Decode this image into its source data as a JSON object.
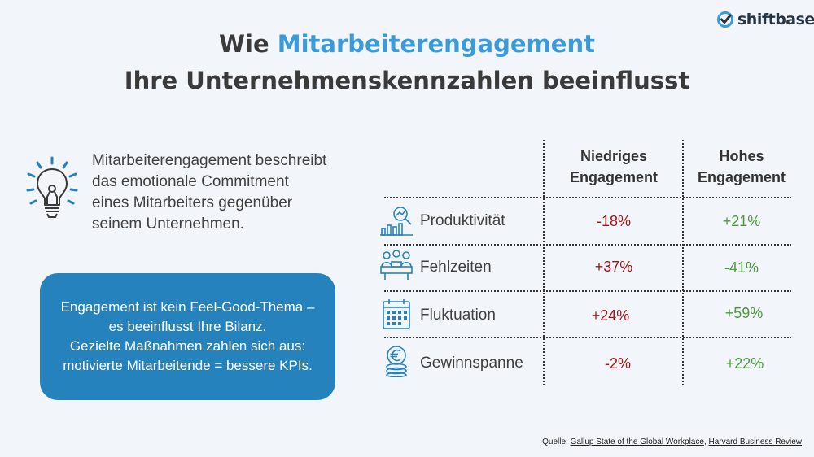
{
  "brand": {
    "name": "shiftbase",
    "icon": "check-circle-icon",
    "color": "#243447"
  },
  "header": {
    "title_prefix": "Wie",
    "title_highlight": "Mitarbeiterengagement",
    "subtitle": "Ihre Unternehmenskennzahlen beeinflusst"
  },
  "intro": {
    "icon": "lightbulb-icon",
    "lines": [
      "Mitarbeiterengagement beschreibt",
      "das emotionale Commitment",
      "eines Mitarbeiters gegenüber",
      "seinem Unternehmen."
    ]
  },
  "callout": {
    "lines": [
      "Engagement ist kein Feel-Good-Thema –",
      "es beeinflusst Ihre Bilanz.",
      "Gezielte Maßnahmen zahlen sich aus:",
      "motivierte Mitarbeitende = bessere KPIs."
    ],
    "background": "#2582bd"
  },
  "table": {
    "columns": [
      {
        "line1": "Niedriges",
        "line2": "Engagement"
      },
      {
        "line1": "Hohes",
        "line2": "Engagement"
      }
    ],
    "rows": [
      {
        "label": "Produktivität",
        "icon": "productivity-chart-icon",
        "low": "-18%",
        "high": "+21%"
      },
      {
        "label": "Fehlzeiten",
        "icon": "meeting-people-icon",
        "low": "+37%",
        "high": "-41%"
      },
      {
        "label": "Fluktuation",
        "icon": "calendar-icon",
        "low": "+24%",
        "high": "+59%"
      },
      {
        "label": "Gewinnspanne",
        "icon": "euro-coins-icon",
        "low": "-2%",
        "high": "+22%"
      }
    ],
    "colors": {
      "negative": "#a31515",
      "positive": "#4d9a3d"
    }
  },
  "source": {
    "label": "Quelle:",
    "link1": "Gallup State of the Global Workplace",
    "separator": ",",
    "link2": "Harvard Business Review"
  }
}
